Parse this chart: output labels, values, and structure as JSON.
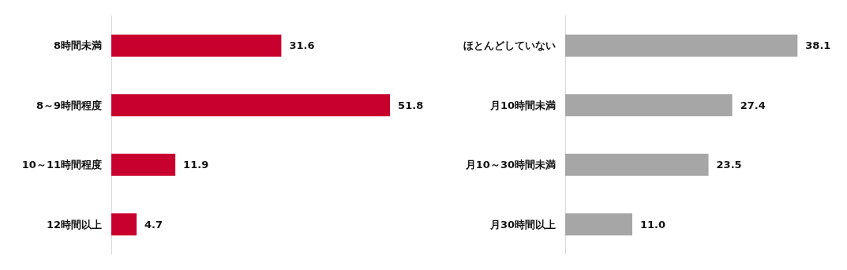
{
  "chart_data": [
    {
      "type": "bar",
      "orientation": "horizontal",
      "categories": [
        "8時間未満",
        "8～9時間程度",
        "10～11時間程度",
        "12時間以上"
      ],
      "values": [
        31.6,
        51.8,
        11.9,
        4.7
      ],
      "color": "#c8002d",
      "data_labels": true,
      "grid": false
    },
    {
      "type": "bar",
      "orientation": "horizontal",
      "categories": [
        "ほとんどしていない",
        "月10時間未満",
        "月10～30時間未満",
        "月30時間以上"
      ],
      "values": [
        38.1,
        27.4,
        23.5,
        11.0
      ],
      "value_labels": [
        "38.1",
        "27.4",
        "23.5",
        "11.0"
      ],
      "color": "#a6a6a6",
      "grid": false
    }
  ]
}
